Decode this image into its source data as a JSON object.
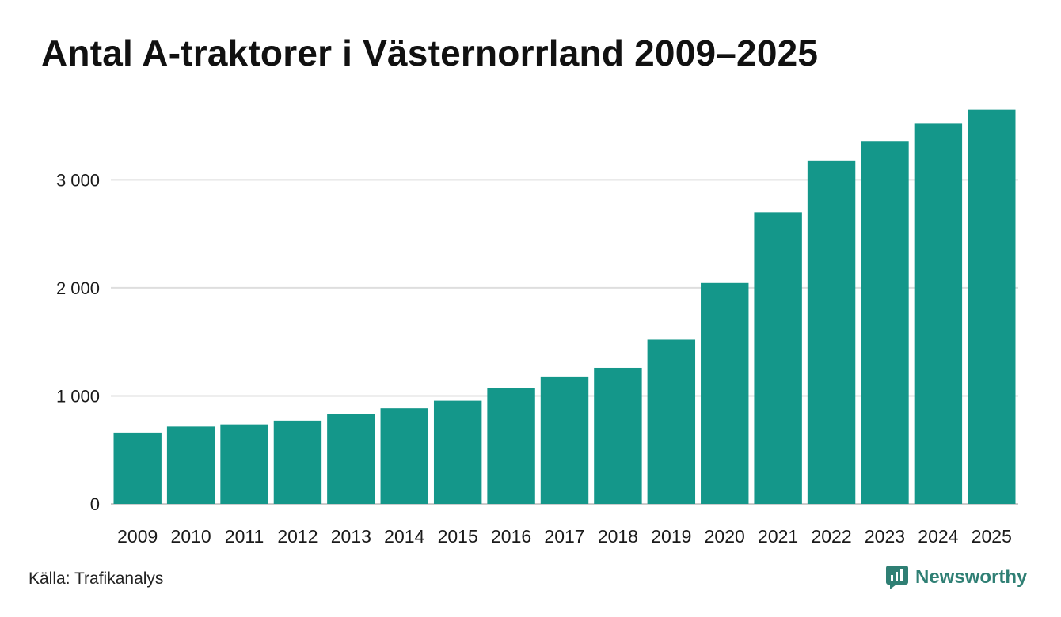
{
  "title": "Antal A-traktorer i Västernorrland 2009–2025",
  "source": "Källa: Trafikanalys",
  "brand": "Newsworthy",
  "colors": {
    "bar": "#14978a",
    "grid": "#dedede",
    "axis": "#cccccc",
    "text": "#1a1a1a",
    "brand": "#2f7f74"
  },
  "chart_data": {
    "type": "bar",
    "title": "Antal A-traktorer i Västernorrland 2009–2025",
    "xlabel": "",
    "ylabel": "",
    "ylim": [
      0,
      3750
    ],
    "yticks": [
      0,
      1000,
      2000,
      3000
    ],
    "ytick_labels": [
      "0",
      "1 000",
      "2 000",
      "3 000"
    ],
    "grid": true,
    "categories": [
      "2009",
      "2010",
      "2011",
      "2012",
      "2013",
      "2014",
      "2015",
      "2016",
      "2017",
      "2018",
      "2019",
      "2020",
      "2021",
      "2022",
      "2023",
      "2024",
      "2025"
    ],
    "values": [
      660,
      715,
      735,
      770,
      830,
      885,
      955,
      1075,
      1180,
      1260,
      1520,
      2045,
      2700,
      3180,
      3360,
      3520,
      3650
    ]
  }
}
